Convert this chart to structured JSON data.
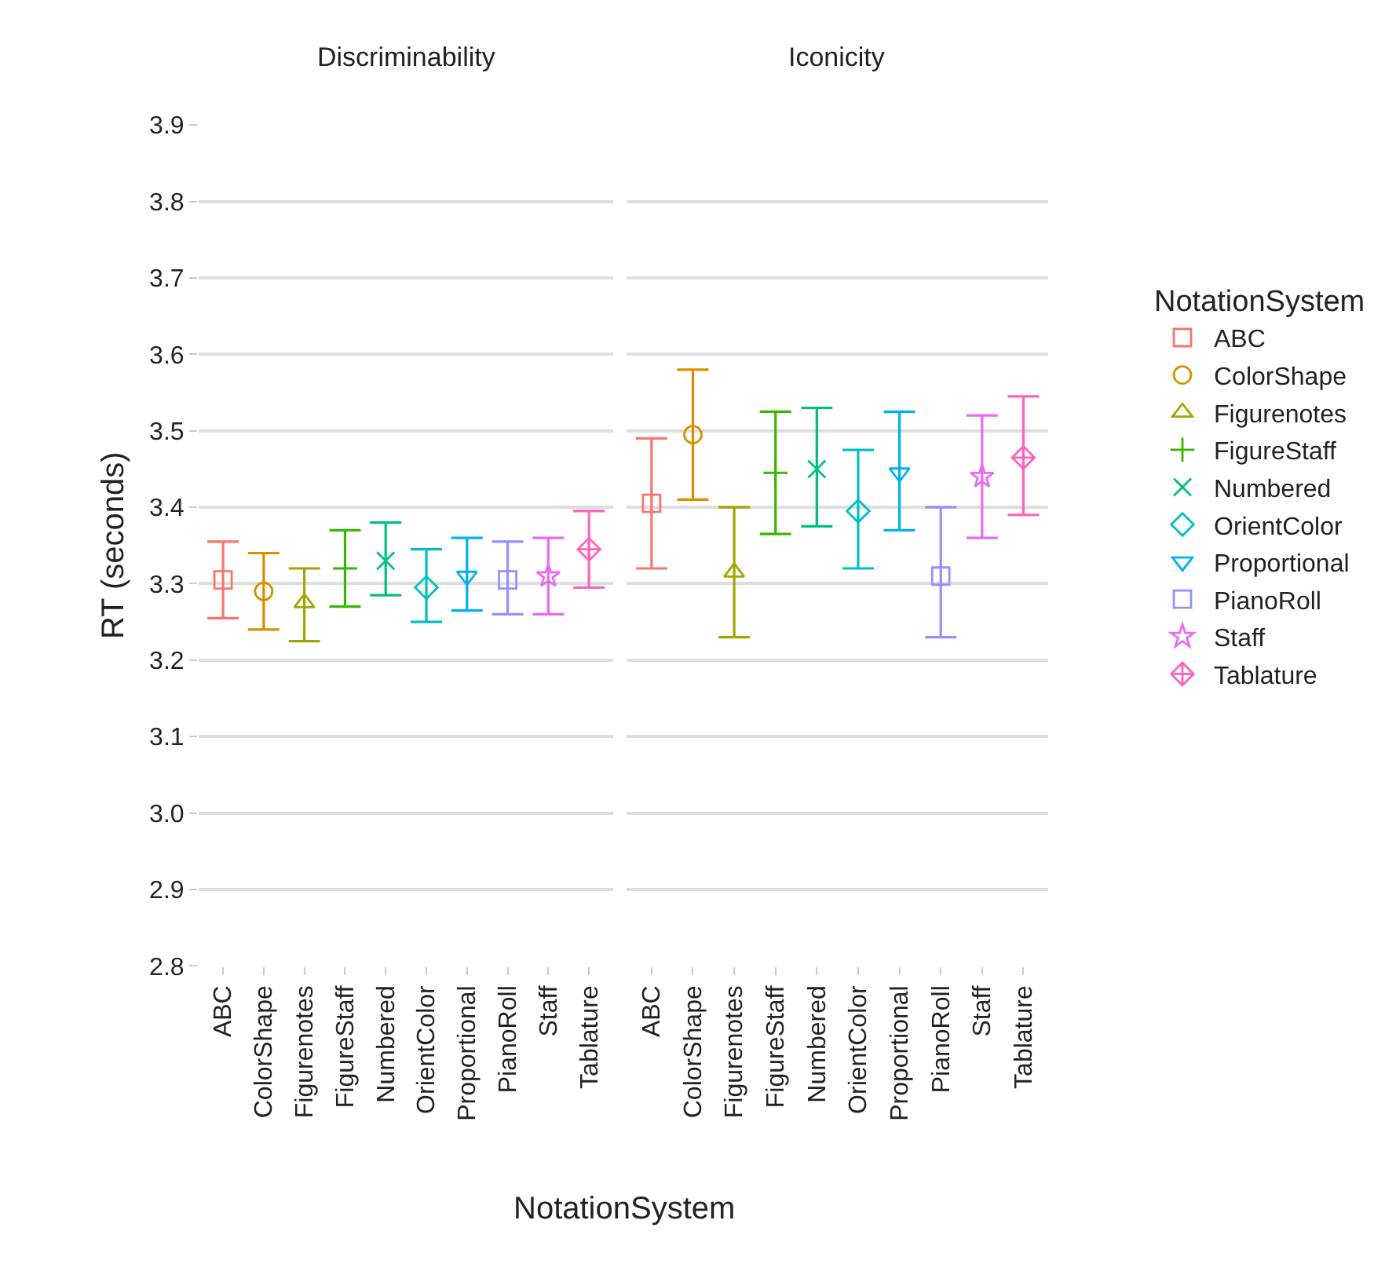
{
  "chart_data": [
    {
      "type": "scatter",
      "title": "Discriminability",
      "xlabel": "NotationSystem",
      "ylabel": "RT (seconds)",
      "legend_title": "NotationSystem",
      "legend": "right",
      "grid": "y",
      "categories": [
        "ABC",
        "ColorShape",
        "Figurenotes",
        "FigureStaff",
        "Numbered",
        "OrientColor",
        "Proportional",
        "PianoRoll",
        "Staff",
        "Tablature"
      ],
      "ylim": [
        2.8,
        3.9
      ],
      "yticks": [
        2.8,
        2.9,
        {
          "value": 3.0,
          "label": "3.0"
        },
        3.1,
        3.2,
        3.3,
        3.4,
        3.5,
        3.6,
        3.7,
        3.8,
        3.9
      ],
      "series": [
        {
          "name": "ABC",
          "color": "#F8766D",
          "marker": "square",
          "values": [
            3.305,
            null,
            null,
            null,
            null,
            null,
            null,
            null,
            null,
            null
          ],
          "errors": [
            [
              3.255,
              3.355
            ],
            null,
            null,
            null,
            null,
            null,
            null,
            null,
            null,
            null
          ]
        },
        {
          "name": "ColorShape",
          "color": "#D89000",
          "marker": "circle",
          "values": [
            null,
            3.29,
            null,
            null,
            null,
            null,
            null,
            null,
            null,
            null
          ],
          "errors": [
            null,
            [
              3.24,
              3.34
            ],
            null,
            null,
            null,
            null,
            null,
            null,
            null,
            null
          ]
        },
        {
          "name": "Figurenotes",
          "color": "#A3A500",
          "marker": "triangle",
          "values": [
            null,
            null,
            3.275,
            null,
            null,
            null,
            null,
            null,
            null,
            null
          ],
          "errors": [
            null,
            null,
            [
              3.225,
              3.32
            ],
            null,
            null,
            null,
            null,
            null,
            null,
            null
          ]
        },
        {
          "name": "FigureStaff",
          "color": "#39B600",
          "marker": "cross",
          "values": [
            null,
            null,
            null,
            3.32,
            null,
            null,
            null,
            null,
            null,
            null
          ],
          "errors": [
            null,
            null,
            null,
            [
              3.27,
              3.37
            ],
            null,
            null,
            null,
            null,
            null,
            null
          ]
        },
        {
          "name": "Numbered",
          "color": "#00BF7D",
          "marker": "x",
          "values": [
            null,
            null,
            null,
            null,
            3.33,
            null,
            null,
            null,
            null,
            null
          ],
          "errors": [
            null,
            null,
            null,
            null,
            [
              3.285,
              3.38
            ],
            null,
            null,
            null,
            null,
            null
          ]
        },
        {
          "name": "OrientColor",
          "color": "#00BFC4",
          "marker": "diamond",
          "values": [
            null,
            null,
            null,
            null,
            null,
            3.295,
            null,
            null,
            null,
            null
          ],
          "errors": [
            null,
            null,
            null,
            null,
            null,
            [
              3.25,
              3.345
            ],
            null,
            null,
            null,
            null
          ]
        },
        {
          "name": "Proportional",
          "color": "#00B0F6",
          "marker": "triangle-down",
          "values": [
            null,
            null,
            null,
            null,
            null,
            null,
            3.31,
            null,
            null,
            null
          ],
          "errors": [
            null,
            null,
            null,
            null,
            null,
            null,
            [
              3.265,
              3.36
            ],
            null,
            null,
            null
          ]
        },
        {
          "name": "PianoRoll",
          "color": "#9590FF",
          "marker": "square",
          "values": [
            null,
            null,
            null,
            null,
            null,
            null,
            null,
            3.305,
            null,
            null
          ],
          "errors": [
            null,
            null,
            null,
            null,
            null,
            null,
            null,
            [
              3.26,
              3.355
            ],
            null,
            null
          ]
        },
        {
          "name": "Staff",
          "color": "#E76BF3",
          "marker": "star",
          "values": [
            null,
            null,
            null,
            null,
            null,
            null,
            null,
            null,
            3.31,
            null
          ],
          "errors": [
            null,
            null,
            null,
            null,
            null,
            null,
            null,
            null,
            [
              3.26,
              3.36
            ],
            null
          ]
        },
        {
          "name": "Tablature",
          "color": "#FF62BC",
          "marker": "diamond-cross",
          "values": [
            null,
            null,
            null,
            null,
            null,
            null,
            null,
            null,
            null,
            3.345
          ],
          "errors": [
            null,
            null,
            null,
            null,
            null,
            null,
            null,
            null,
            null,
            [
              3.295,
              3.395
            ]
          ]
        }
      ]
    },
    {
      "type": "scatter",
      "title": "Iconicity",
      "grid": "y",
      "tick_labels": "x",
      "categories": [
        "ABC",
        "ColorShape",
        "Figurenotes",
        "FigureStaff",
        "Numbered",
        "OrientColor",
        "Proportional",
        "PianoRoll",
        "Staff",
        "Tablature"
      ],
      "ylim": [
        2.8,
        3.9
      ],
      "yticks": [
        2.8,
        2.9,
        3,
        3.1,
        3.2,
        3.3,
        3.4,
        3.5,
        3.6,
        3.7,
        3.8,
        3.9
      ],
      "series": [
        {
          "color": "#F8766D",
          "marker": "square",
          "values": [
            3.405,
            null,
            null,
            null,
            null,
            null,
            null,
            null,
            null,
            null
          ],
          "errors": [
            [
              3.32,
              3.49
            ],
            null,
            null,
            null,
            null,
            null,
            null,
            null,
            null,
            null
          ]
        },
        {
          "color": "#D89000",
          "marker": "circle",
          "values": [
            null,
            3.495,
            null,
            null,
            null,
            null,
            null,
            null,
            null,
            null
          ],
          "errors": [
            null,
            [
              3.41,
              3.58
            ],
            null,
            null,
            null,
            null,
            null,
            null,
            null,
            null
          ]
        },
        {
          "color": "#A3A500",
          "marker": "triangle",
          "values": [
            null,
            null,
            3.315,
            null,
            null,
            null,
            null,
            null,
            null,
            null
          ],
          "errors": [
            null,
            null,
            [
              3.23,
              3.4
            ],
            null,
            null,
            null,
            null,
            null,
            null,
            null
          ]
        },
        {
          "color": "#39B600",
          "marker": "cross",
          "values": [
            null,
            null,
            null,
            3.445,
            null,
            null,
            null,
            null,
            null,
            null
          ],
          "errors": [
            null,
            null,
            null,
            [
              3.365,
              3.525
            ],
            null,
            null,
            null,
            null,
            null,
            null
          ]
        },
        {
          "color": "#00BF7D",
          "marker": "x",
          "values": [
            null,
            null,
            null,
            null,
            3.45,
            null,
            null,
            null,
            null,
            null
          ],
          "errors": [
            null,
            null,
            null,
            null,
            [
              3.375,
              3.53
            ],
            null,
            null,
            null,
            null,
            null
          ]
        },
        {
          "color": "#00BFC4",
          "marker": "diamond",
          "values": [
            null,
            null,
            null,
            null,
            null,
            3.395,
            null,
            null,
            null,
            null
          ],
          "errors": [
            null,
            null,
            null,
            null,
            null,
            [
              3.32,
              3.475
            ],
            null,
            null,
            null,
            null
          ]
        },
        {
          "color": "#00B0F6",
          "marker": "triangle-down",
          "values": [
            null,
            null,
            null,
            null,
            null,
            null,
            3.445,
            null,
            null,
            null
          ],
          "errors": [
            null,
            null,
            null,
            null,
            null,
            null,
            [
              3.37,
              3.525
            ],
            null,
            null,
            null
          ]
        },
        {
          "color": "#9590FF",
          "marker": "square",
          "values": [
            null,
            null,
            null,
            null,
            null,
            null,
            null,
            3.31,
            null,
            null
          ],
          "errors": [
            null,
            null,
            null,
            null,
            null,
            null,
            null,
            [
              3.23,
              3.4
            ],
            null,
            null
          ]
        },
        {
          "color": "#E76BF3",
          "marker": "star",
          "values": [
            null,
            null,
            null,
            null,
            null,
            null,
            null,
            null,
            3.44,
            null
          ],
          "errors": [
            null,
            null,
            null,
            null,
            null,
            null,
            null,
            null,
            [
              3.36,
              3.52
            ],
            null
          ]
        },
        {
          "color": "#FF62BC",
          "marker": "diamond-cross",
          "values": [
            null,
            null,
            null,
            null,
            null,
            null,
            null,
            null,
            null,
            3.465
          ],
          "errors": [
            null,
            null,
            null,
            null,
            null,
            null,
            null,
            null,
            null,
            [
              3.39,
              3.545
            ]
          ]
        }
      ]
    }
  ]
}
